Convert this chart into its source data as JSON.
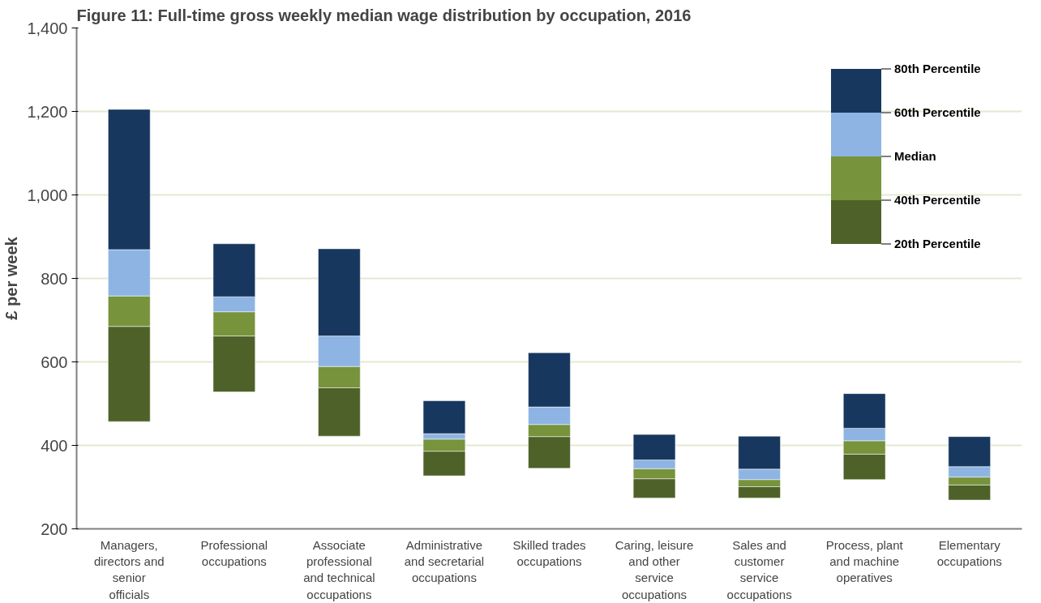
{
  "chart_data": {
    "type": "bar",
    "title": "Figure 11: Full-time gross weekly median wage distribution  by occupation, 2016",
    "ylabel": "£ per week",
    "categories": [
      "Managers, directors and senior officials",
      "Professional occupations",
      "Associate professional and technical occupations",
      "Administrative and secretarial occupations",
      "Skilled trades occupations",
      "Caring, leisure and other service occupations",
      "Sales and customer service occupations",
      "Process, plant and machine operatives",
      "Elementary occupations"
    ],
    "series": [
      {
        "color": "#4e6128",
        "base": [
          457,
          528,
          422,
          327,
          345,
          274,
          274,
          318,
          269
        ],
        "values": [
          228,
          134,
          116,
          59,
          76,
          46,
          27,
          61,
          36
        ]
      },
      {
        "color": "#77933c",
        "base": [
          685,
          662,
          538,
          386,
          421,
          320,
          301,
          379,
          305
        ],
        "values": [
          73,
          58,
          51,
          29,
          29,
          24,
          17,
          32,
          19
        ]
      },
      {
        "color": "#8eb4e3",
        "base": [
          758,
          720,
          589,
          415,
          450,
          344,
          318,
          411,
          324
        ],
        "values": [
          111,
          36,
          73,
          13,
          42,
          21,
          25,
          30,
          25
        ]
      },
      {
        "color": "#17375e",
        "base": [
          869,
          756,
          662,
          428,
          492,
          365,
          343,
          441,
          349
        ],
        "values": [
          336,
          127,
          209,
          79,
          130,
          61,
          79,
          83,
          72
        ]
      }
    ],
    "annotations": [
      "20th Percentile",
      "40th Percentile",
      "Median",
      "60th Percentile",
      "80th Percentile"
    ],
    "ylim": [
      200,
      1400
    ],
    "yticks": [
      {
        "value": 200,
        "label": "200"
      },
      {
        "value": 400,
        "label": "400"
      },
      {
        "value": 600,
        "label": "600"
      },
      {
        "value": 800,
        "label": "800"
      },
      {
        "value": 1000,
        "label": "1,000"
      },
      {
        "value": 1200,
        "label": "1,200"
      },
      {
        "value": 1400,
        "label": "1,400"
      }
    ],
    "grid": "y"
  }
}
